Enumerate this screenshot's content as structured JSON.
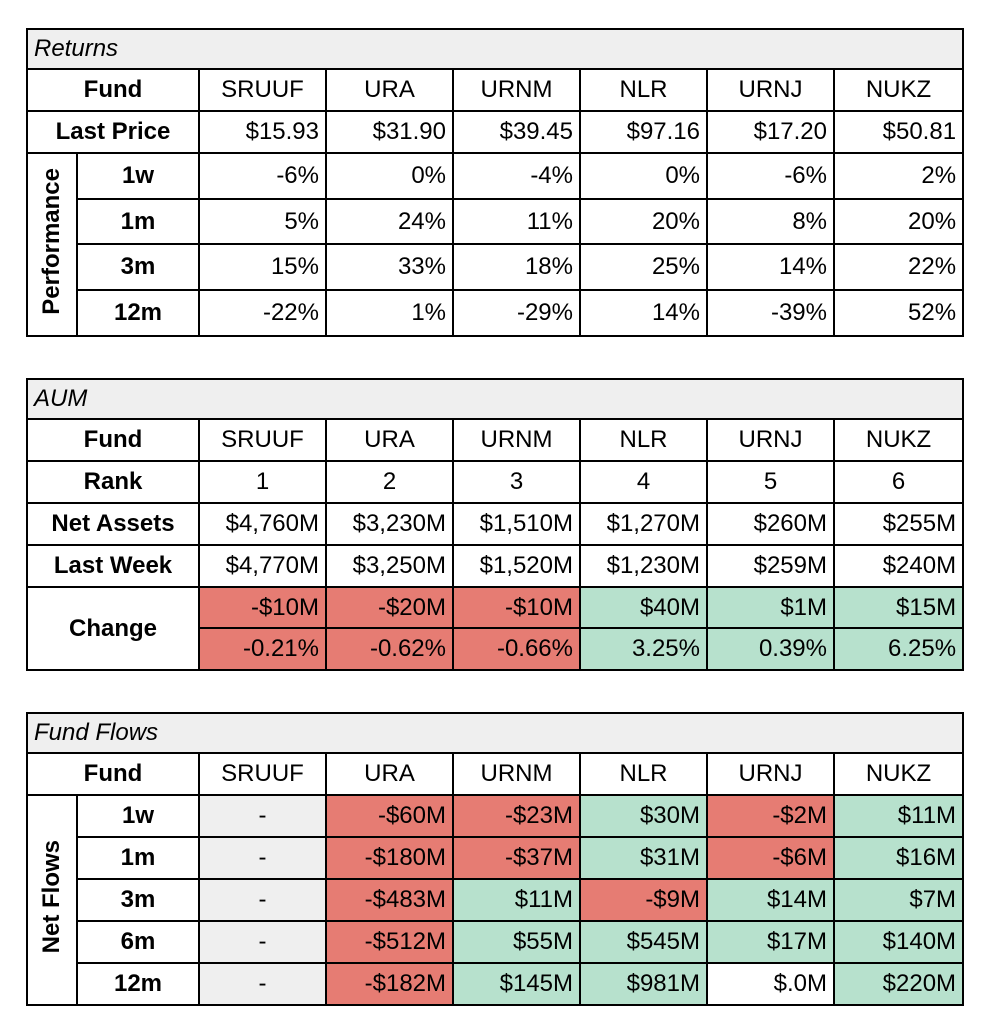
{
  "returns": {
    "title": "Returns",
    "fund_label": "Fund",
    "funds": [
      "SRUUF",
      "URA",
      "URNM",
      "NLR",
      "URNJ",
      "NUKZ"
    ],
    "last_price_label": "Last Price",
    "last_price": [
      "$15.93",
      "$31.90",
      "$39.45",
      "$97.16",
      "$17.20",
      "$50.81"
    ],
    "group_label": "Performance",
    "rows": [
      {
        "label": "1w",
        "values": [
          "-6%",
          "0%",
          "-4%",
          "0%",
          "-6%",
          "2%"
        ]
      },
      {
        "label": "1m",
        "values": [
          "5%",
          "24%",
          "11%",
          "20%",
          "8%",
          "20%"
        ]
      },
      {
        "label": "3m",
        "values": [
          "15%",
          "33%",
          "18%",
          "25%",
          "14%",
          "22%"
        ]
      },
      {
        "label": "12m",
        "values": [
          "-22%",
          "1%",
          "-29%",
          "14%",
          "-39%",
          "52%"
        ]
      }
    ]
  },
  "aum": {
    "title": "AUM",
    "fund_label": "Fund",
    "funds": [
      "SRUUF",
      "URA",
      "URNM",
      "NLR",
      "URNJ",
      "NUKZ"
    ],
    "rank_label": "Rank",
    "rank": [
      "1",
      "2",
      "3",
      "4",
      "5",
      "6"
    ],
    "net_assets_label": "Net Assets",
    "net_assets": [
      "$4,760M",
      "$3,230M",
      "$1,510M",
      "$1,270M",
      "$260M",
      "$255M"
    ],
    "last_week_label": "Last Week",
    "last_week": [
      "$4,770M",
      "$3,250M",
      "$1,520M",
      "$1,230M",
      "$259M",
      "$240M"
    ],
    "change_label": "Change",
    "change_abs": [
      {
        "v": "-$10M",
        "s": "neg"
      },
      {
        "v": "-$20M",
        "s": "neg"
      },
      {
        "v": "-$10M",
        "s": "neg"
      },
      {
        "v": "$40M",
        "s": "pos"
      },
      {
        "v": "$1M",
        "s": "pos"
      },
      {
        "v": "$15M",
        "s": "pos"
      }
    ],
    "change_pct": [
      {
        "v": "-0.21%",
        "s": "neg"
      },
      {
        "v": "-0.62%",
        "s": "neg"
      },
      {
        "v": "-0.66%",
        "s": "neg"
      },
      {
        "v": "3.25%",
        "s": "pos"
      },
      {
        "v": "0.39%",
        "s": "pos"
      },
      {
        "v": "6.25%",
        "s": "pos"
      }
    ]
  },
  "flows": {
    "title": "Fund Flows",
    "fund_label": "Fund",
    "funds": [
      "SRUUF",
      "URA",
      "URNM",
      "NLR",
      "URNJ",
      "NUKZ"
    ],
    "group_label": "Net Flows",
    "rows": [
      {
        "label": "1w",
        "cells": [
          {
            "v": "-",
            "s": "na"
          },
          {
            "v": "-$60M",
            "s": "neg"
          },
          {
            "v": "-$23M",
            "s": "neg"
          },
          {
            "v": "$30M",
            "s": "pos"
          },
          {
            "v": "-$2M",
            "s": "neg"
          },
          {
            "v": "$11M",
            "s": "pos"
          }
        ]
      },
      {
        "label": "1m",
        "cells": [
          {
            "v": "-",
            "s": "na"
          },
          {
            "v": "-$180M",
            "s": "neg"
          },
          {
            "v": "-$37M",
            "s": "neg"
          },
          {
            "v": "$31M",
            "s": "pos"
          },
          {
            "v": "-$6M",
            "s": "neg"
          },
          {
            "v": "$16M",
            "s": "pos"
          }
        ]
      },
      {
        "label": "3m",
        "cells": [
          {
            "v": "-",
            "s": "na"
          },
          {
            "v": "-$483M",
            "s": "neg"
          },
          {
            "v": "$11M",
            "s": "pos"
          },
          {
            "v": "-$9M",
            "s": "neg"
          },
          {
            "v": "$14M",
            "s": "pos"
          },
          {
            "v": "$7M",
            "s": "pos"
          }
        ]
      },
      {
        "label": "6m",
        "cells": [
          {
            "v": "-",
            "s": "na"
          },
          {
            "v": "-$512M",
            "s": "neg"
          },
          {
            "v": "$55M",
            "s": "pos"
          },
          {
            "v": "$545M",
            "s": "pos"
          },
          {
            "v": "$17M",
            "s": "pos"
          },
          {
            "v": "$140M",
            "s": "pos"
          }
        ]
      },
      {
        "label": "12m",
        "cells": [
          {
            "v": "-",
            "s": "na"
          },
          {
            "v": "-$182M",
            "s": "neg"
          },
          {
            "v": "$145M",
            "s": "pos"
          },
          {
            "v": "$981M",
            "s": "pos"
          },
          {
            "v": "$.0M",
            "s": "none"
          },
          {
            "v": "$220M",
            "s": "pos"
          }
        ]
      }
    ]
  },
  "colors": {
    "negative": "#e67c73",
    "positive": "#b7e1cd",
    "neutral": "#efefef"
  }
}
